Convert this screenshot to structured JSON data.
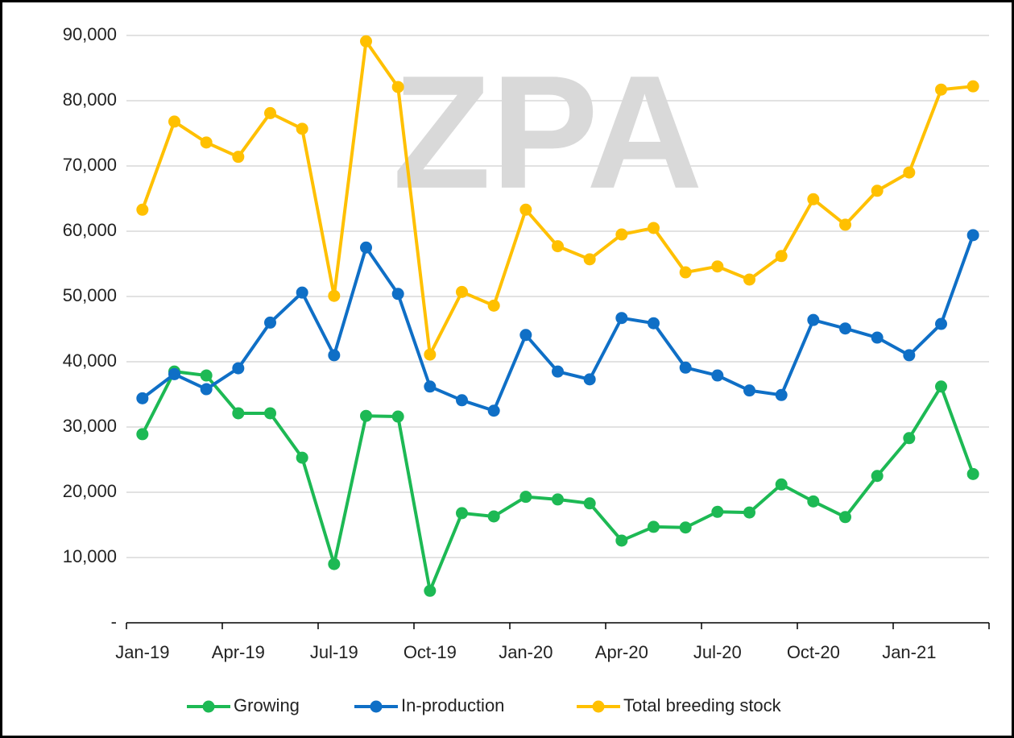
{
  "chart_data": {
    "type": "line",
    "watermark": "ZPA",
    "categories": [
      "Jan-19",
      null,
      null,
      "Apr-19",
      null,
      null,
      "Jul-19",
      null,
      null,
      "Oct-19",
      null,
      null,
      "Jan-20",
      null,
      null,
      "Apr-20",
      null,
      null,
      "Jul-20",
      null,
      null,
      "Oct-20",
      null,
      null,
      "Jan-21",
      null,
      null
    ],
    "series": [
      {
        "name": "Growing",
        "color": "#1db954",
        "values": [
          28900,
          38500,
          37900,
          32100,
          32100,
          25300,
          9000,
          31700,
          31600,
          4900,
          16800,
          16300,
          19300,
          18900,
          18300,
          12600,
          14700,
          14600,
          17000,
          16900,
          21200,
          18600,
          16200,
          22500,
          28300,
          36200,
          22800
        ]
      },
      {
        "name": "In-production",
        "color": "#0f6fc6",
        "values": [
          34400,
          38100,
          35800,
          39000,
          46000,
          50600,
          41000,
          57500,
          50400,
          36200,
          34100,
          32500,
          44100,
          38500,
          37300,
          46700,
          45900,
          39100,
          37900,
          35600,
          34900,
          46400,
          45100,
          43700,
          41000,
          45800,
          59400
        ]
      },
      {
        "name": "Total breeding stock",
        "color": "#ffc000",
        "values": [
          63300,
          76800,
          73600,
          71400,
          78100,
          75700,
          50100,
          89100,
          82100,
          41100,
          50700,
          48600,
          63300,
          57700,
          55700,
          59500,
          60500,
          53700,
          54600,
          52600,
          56200,
          64900,
          61000,
          66200,
          69000,
          81700,
          82200
        ]
      }
    ],
    "ylim": [
      0,
      90000
    ],
    "yticks": [
      {
        "value": 0,
        "label": "-"
      },
      {
        "value": 10000,
        "label": "10,000"
      },
      {
        "value": 20000,
        "label": "20,000"
      },
      {
        "value": 30000,
        "label": "30,000"
      },
      {
        "value": 40000,
        "label": "40,000"
      },
      {
        "value": 50000,
        "label": "50,000"
      },
      {
        "value": 60000,
        "label": "60,000"
      },
      {
        "value": 70000,
        "label": "70,000"
      },
      {
        "value": 80000,
        "label": "80,000"
      },
      {
        "value": 90000,
        "label": "90,000"
      }
    ],
    "grid": true,
    "legend": "bottom"
  }
}
